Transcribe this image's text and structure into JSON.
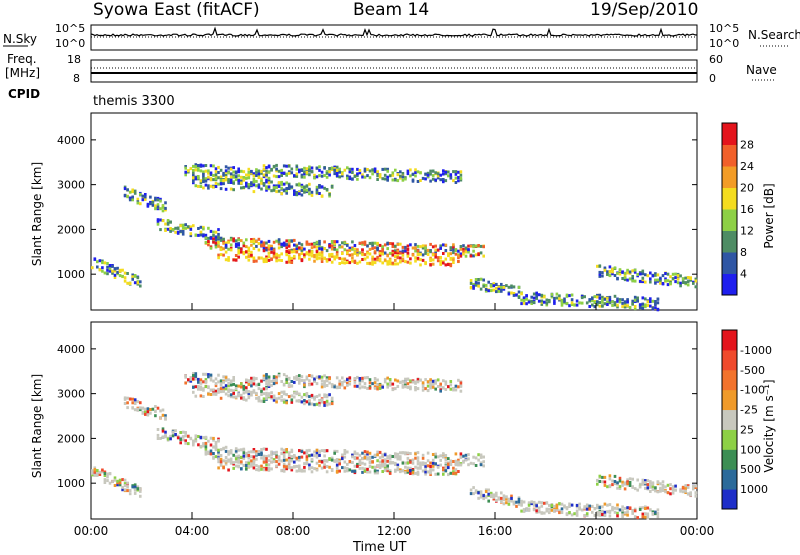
{
  "header": {
    "station": "Syowa East (fitACF)",
    "beam": "Beam 14",
    "date": "19/Sep/2010"
  },
  "top_panels": {
    "nsky_label": "N.Sky",
    "nsky_ticks": [
      "10^5",
      "10^0"
    ],
    "nsearch_label": "N.Search",
    "nsearch_ticks": [
      "10^5",
      "10^0"
    ],
    "freq_label": "Freq.",
    "freq_unit": "[MHz]",
    "freq_ticks": [
      "18",
      "8"
    ],
    "nave_label": "Nave",
    "nave_ticks": [
      "60",
      "0"
    ],
    "cpid_label": "CPID",
    "cpid_value": "themis 3300"
  },
  "chart_data": [
    {
      "type": "heatmap",
      "panel": "power",
      "ylabel": "Slant Range [km]",
      "y_ticks": [
        1000,
        2000,
        3000,
        4000
      ],
      "ylim": [
        200,
        4600
      ],
      "xlim": [
        0,
        24
      ],
      "colorbar_label": "Power [dB]",
      "colorbar_ticks": [
        "4",
        "8",
        "12",
        "16",
        "20",
        "24",
        "28"
      ],
      "colorbar_colors": [
        "#1f1fee",
        "#2f56a4",
        "#4e8c64",
        "#8dd045",
        "#f4dc1f",
        "#f39c26",
        "#f1602a",
        "#e4141c"
      ],
      "scatter_bands": [
        {
          "t0": 3.7,
          "t1": 7.0,
          "r0": 3380,
          "r1": 3230
        },
        {
          "t0": 6.8,
          "t1": 14.6,
          "r0": 3350,
          "r1": 3200
        },
        {
          "t0": 4.0,
          "t1": 9.5,
          "r0": 3100,
          "r1": 2880
        },
        {
          "t0": 1.3,
          "t1": 3.0,
          "r0": 2850,
          "r1": 2520
        },
        {
          "t0": 2.6,
          "t1": 5.0,
          "r0": 2150,
          "r1": 1900
        },
        {
          "t0": 4.5,
          "t1": 15.5,
          "r0": 1720,
          "r1": 1550
        },
        {
          "t0": 5.0,
          "t1": 14.5,
          "r0": 1460,
          "r1": 1340
        },
        {
          "t0": 15.0,
          "t1": 17.0,
          "r0": 850,
          "r1": 600
        },
        {
          "t0": 17.0,
          "t1": 20.0,
          "r0": 500,
          "r1": 420
        },
        {
          "t0": 20.0,
          "t1": 22.5,
          "r0": 450,
          "r1": 350
        },
        {
          "t0": 20.0,
          "t1": 24.0,
          "r0": 1100,
          "r1": 850
        },
        {
          "t0": 0.0,
          "t1": 2.0,
          "r0": 1300,
          "r1": 800
        }
      ]
    },
    {
      "type": "heatmap",
      "panel": "velocity",
      "ylabel": "Slant Range [km]",
      "y_ticks": [
        1000,
        2000,
        3000,
        4000
      ],
      "ylim": [
        200,
        4600
      ],
      "xlim": [
        0,
        24
      ],
      "xlabel": "Time UT",
      "x_ticks": [
        "00:00",
        "04:00",
        "08:00",
        "12:00",
        "16:00",
        "20:00",
        "00:00"
      ],
      "colorbar_label": "Velocity [m s⁻¹]",
      "colorbar_ticks": [
        "1000",
        "500",
        "100",
        "25",
        "-25",
        "-100",
        "-500",
        "-1000"
      ],
      "colorbar_colors": [
        "#1e2ec8",
        "#2b6a9a",
        "#3c8e54",
        "#8dd045",
        "#c8c8be",
        "#ef9a2a",
        "#f2732c",
        "#ef4a2c",
        "#e4141c"
      ]
    }
  ]
}
